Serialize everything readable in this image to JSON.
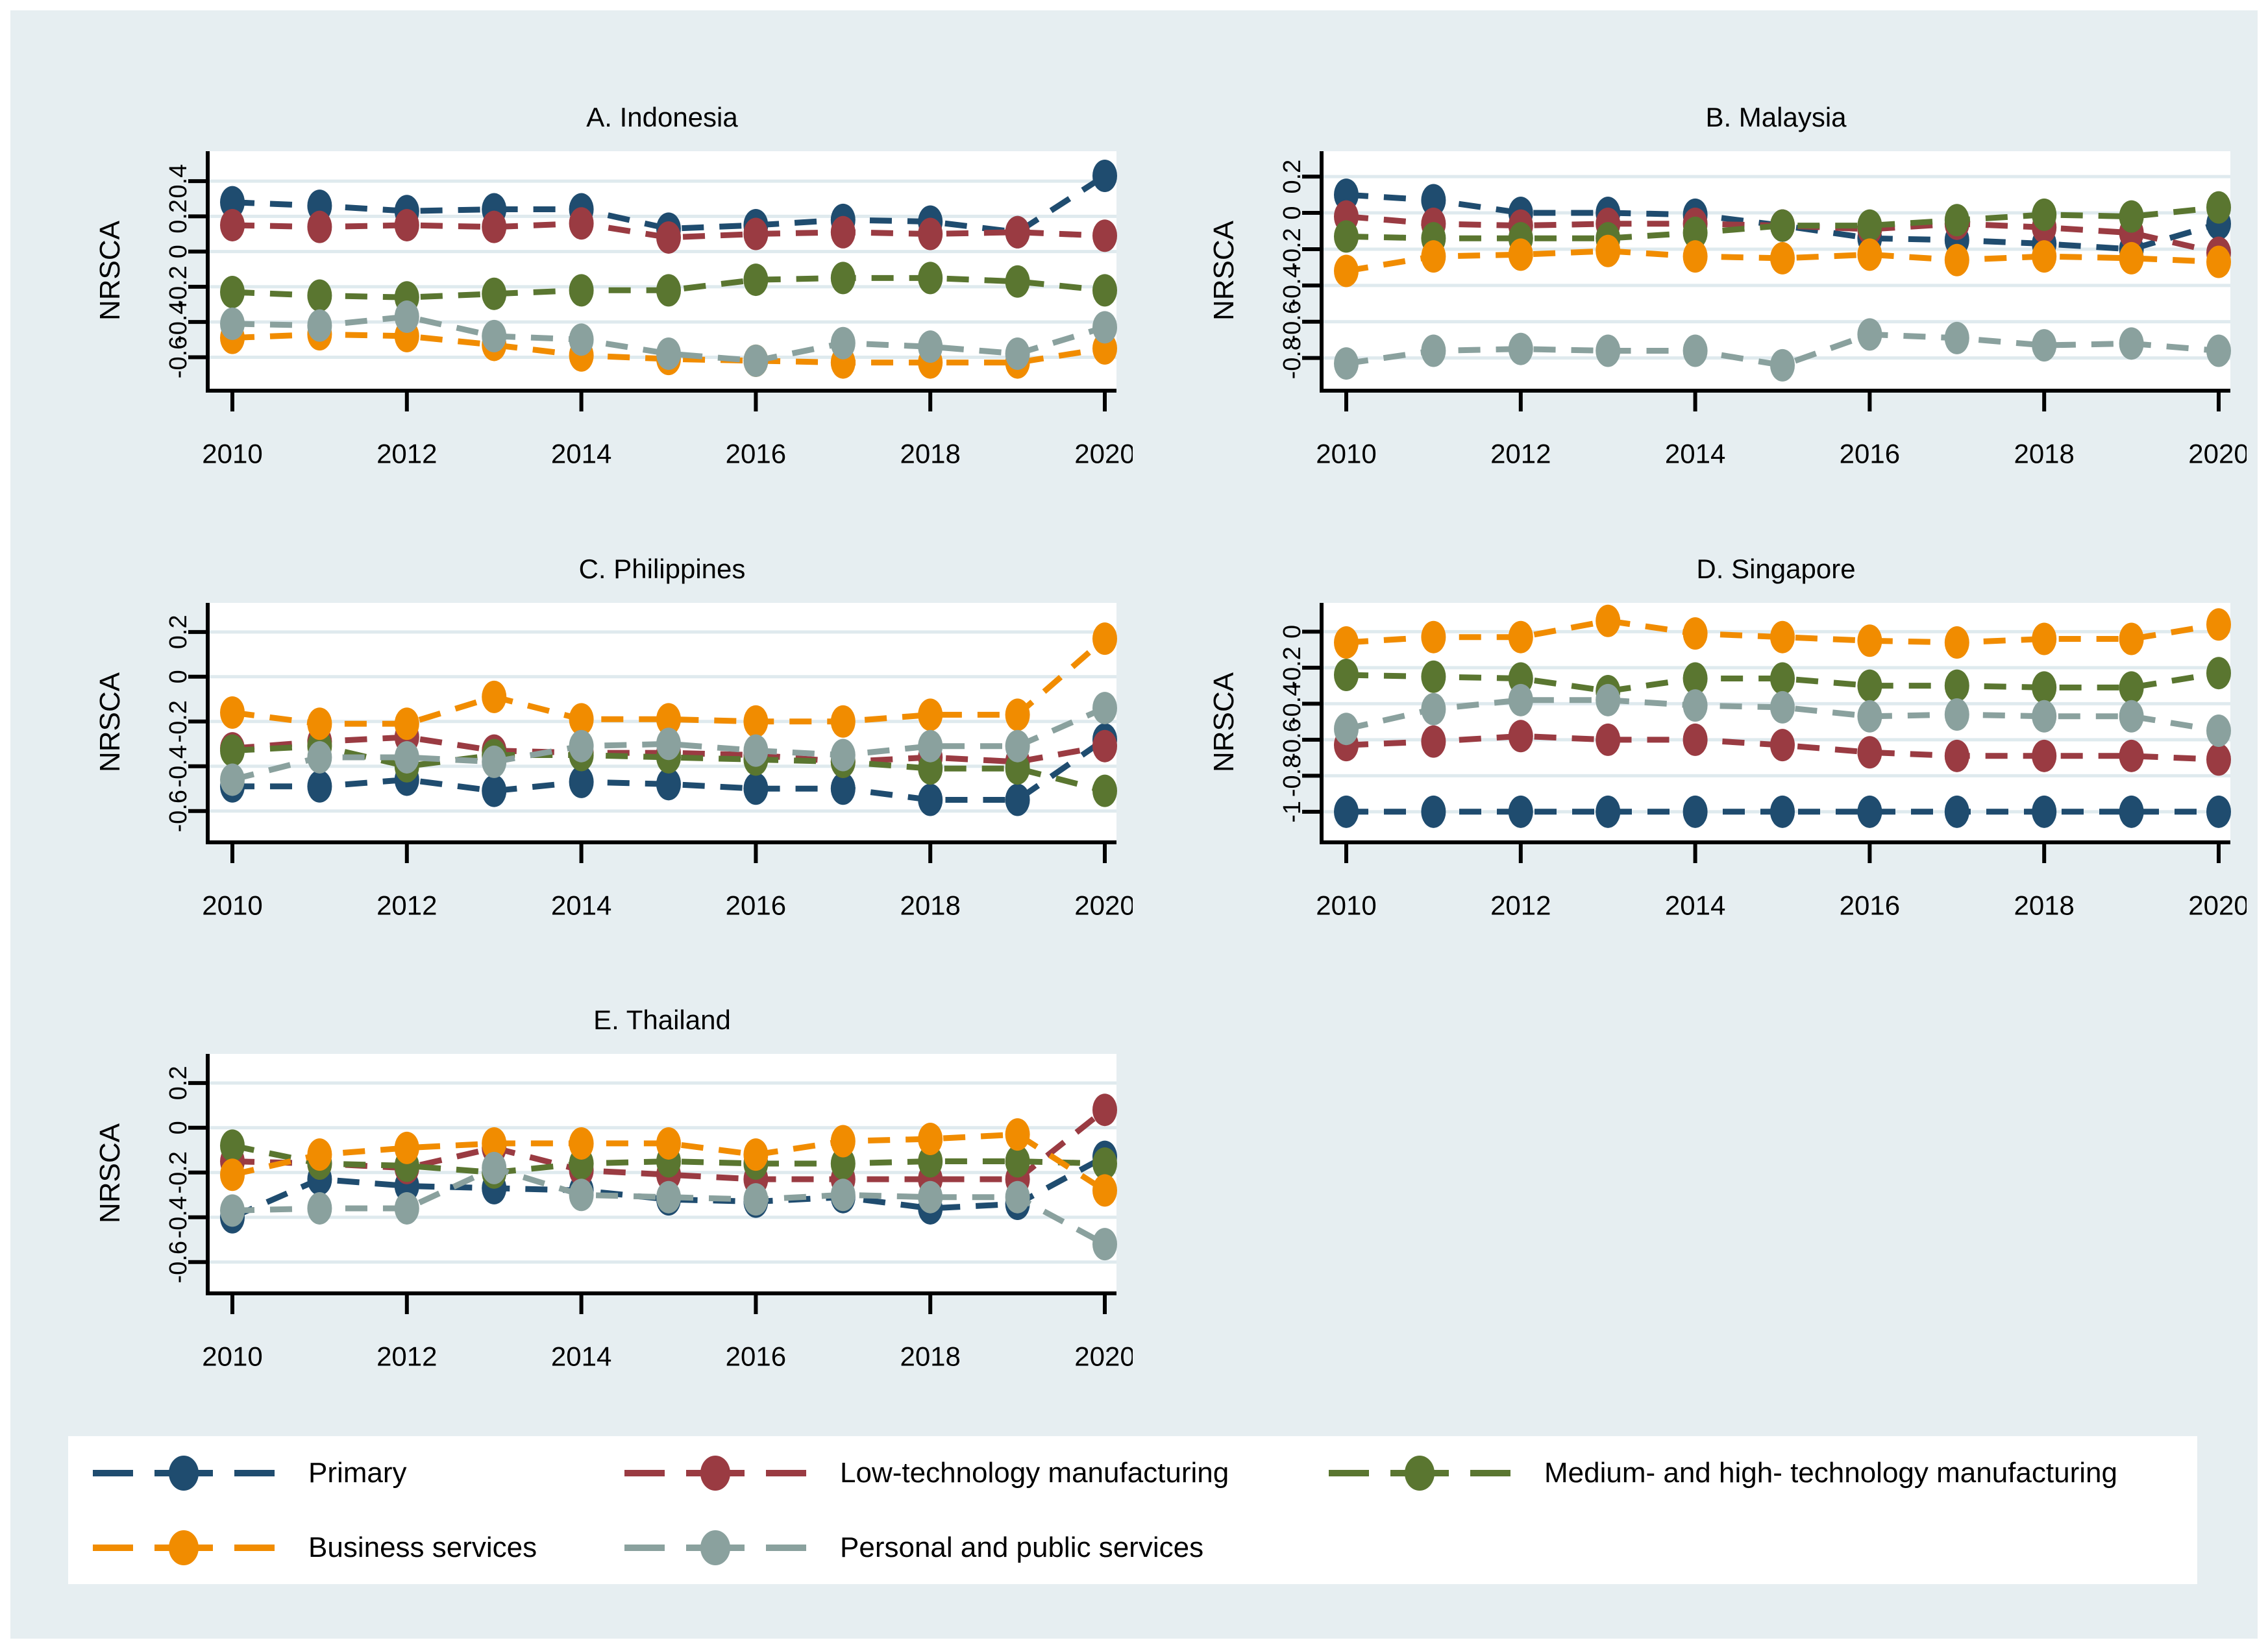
{
  "figure": {
    "background_color": "#e6eef1",
    "plot_background_color": "#ffffff",
    "grid_color": "#dfeaee",
    "axis_color": "#000000"
  },
  "series_meta": [
    {
      "key": "primary",
      "label": "Primary",
      "color": "#1f4c6f"
    },
    {
      "key": "low_tech",
      "label": "Low-technology manufacturing",
      "color": "#9a3b42"
    },
    {
      "key": "med_high_tech",
      "label": "Medium- and high- technology manufacturing",
      "color": "#5a7630"
    },
    {
      "key": "business",
      "label": "Business services",
      "color": "#f18c00"
    },
    {
      "key": "personal_public",
      "label": "Personal and public services",
      "color": "#8aa19e"
    }
  ],
  "chart_data": [
    {
      "type": "line",
      "title": "A. Indonesia",
      "ylabel": "NRSCA",
      "x": [
        2010,
        2011,
        2012,
        2013,
        2014,
        2015,
        2016,
        2017,
        2018,
        2019,
        2020
      ],
      "xticks": [
        2010,
        2012,
        2014,
        2016,
        2018,
        2020
      ],
      "yticks": [
        0.4,
        0.2,
        0,
        -0.2,
        -0.4,
        -0.6
      ],
      "ylim": [
        -0.79,
        0.57
      ],
      "grid": true,
      "legend_position": "bottom-shared",
      "series": [
        {
          "name": "Primary",
          "color": "#1f4c6f",
          "values": [
            0.28,
            0.26,
            0.23,
            0.24,
            0.24,
            0.13,
            0.15,
            0.18,
            0.17,
            0.11,
            0.43
          ]
        },
        {
          "name": "Low-technology manufacturing",
          "color": "#9a3b42",
          "values": [
            0.15,
            0.14,
            0.15,
            0.14,
            0.16,
            0.08,
            0.1,
            0.11,
            0.1,
            0.11,
            0.09
          ]
        },
        {
          "name": "Medium- and high- technology manufacturing",
          "color": "#5a7630",
          "values": [
            -0.23,
            -0.25,
            -0.26,
            -0.24,
            -0.22,
            -0.22,
            -0.16,
            -0.15,
            -0.15,
            -0.17,
            -0.22
          ]
        },
        {
          "name": "Business services",
          "color": "#f18c00",
          "values": [
            -0.49,
            -0.47,
            -0.48,
            -0.53,
            -0.59,
            -0.61,
            -0.62,
            -0.63,
            -0.63,
            -0.63,
            -0.55
          ]
        },
        {
          "name": "Personal and public services",
          "color": "#8aa19e",
          "values": [
            -0.41,
            -0.42,
            -0.37,
            -0.48,
            -0.5,
            -0.58,
            -0.62,
            -0.52,
            -0.54,
            -0.58,
            -0.43
          ]
        }
      ]
    },
    {
      "type": "line",
      "title": "B. Malaysia",
      "ylabel": "NRSCA",
      "x": [
        2010,
        2011,
        2012,
        2013,
        2014,
        2015,
        2016,
        2017,
        2018,
        2019,
        2020
      ],
      "xticks": [
        2010,
        2012,
        2014,
        2016,
        2018,
        2020
      ],
      "yticks": [
        0.2,
        0,
        -0.2,
        -0.4,
        -0.6,
        -0.8
      ],
      "ylim": [
        -0.98,
        0.34
      ],
      "grid": true,
      "legend_position": "bottom-shared",
      "series": [
        {
          "name": "Primary",
          "color": "#1f4c6f",
          "values": [
            0.1,
            0.07,
            0.0,
            0.0,
            -0.01,
            -0.07,
            -0.14,
            -0.15,
            -0.17,
            -0.2,
            -0.06
          ]
        },
        {
          "name": "Low-technology manufacturing",
          "color": "#9a3b42",
          "values": [
            -0.02,
            -0.06,
            -0.07,
            -0.06,
            -0.06,
            -0.07,
            -0.09,
            -0.06,
            -0.08,
            -0.11,
            -0.22
          ]
        },
        {
          "name": "Medium- and high- technology manufacturing",
          "color": "#5a7630",
          "values": [
            -0.13,
            -0.14,
            -0.14,
            -0.14,
            -0.11,
            -0.07,
            -0.07,
            -0.04,
            -0.01,
            -0.02,
            0.03
          ]
        },
        {
          "name": "Business services",
          "color": "#f18c00",
          "values": [
            -0.32,
            -0.24,
            -0.23,
            -0.21,
            -0.24,
            -0.25,
            -0.23,
            -0.26,
            -0.24,
            -0.25,
            -0.27
          ]
        },
        {
          "name": "Personal and public services",
          "color": "#8aa19e",
          "values": [
            -0.83,
            -0.76,
            -0.75,
            -0.76,
            -0.76,
            -0.84,
            -0.67,
            -0.69,
            -0.73,
            -0.72,
            -0.76
          ]
        }
      ]
    },
    {
      "type": "line",
      "title": "C. Philippines",
      "ylabel": "NRSCA",
      "x": [
        2010,
        2011,
        2012,
        2013,
        2014,
        2015,
        2016,
        2017,
        2018,
        2019,
        2020
      ],
      "xticks": [
        2010,
        2012,
        2014,
        2016,
        2018,
        2020
      ],
      "yticks": [
        0.2,
        0,
        -0.2,
        -0.4,
        -0.6
      ],
      "ylim": [
        -0.74,
        0.33
      ],
      "grid": true,
      "legend_position": "bottom-shared",
      "series": [
        {
          "name": "Primary",
          "color": "#1f4c6f",
          "values": [
            -0.49,
            -0.49,
            -0.46,
            -0.51,
            -0.47,
            -0.48,
            -0.5,
            -0.5,
            -0.55,
            -0.55,
            -0.28
          ]
        },
        {
          "name": "Low-technology manufacturing",
          "color": "#9a3b42",
          "values": [
            -0.32,
            -0.29,
            -0.27,
            -0.33,
            -0.34,
            -0.34,
            -0.35,
            -0.38,
            -0.36,
            -0.38,
            -0.31
          ]
        },
        {
          "name": "Medium- and high- technology manufacturing",
          "color": "#5a7630",
          "values": [
            -0.33,
            -0.31,
            -0.4,
            -0.35,
            -0.35,
            -0.36,
            -0.37,
            -0.38,
            -0.41,
            -0.41,
            -0.51
          ]
        },
        {
          "name": "Business services",
          "color": "#f18c00",
          "values": [
            -0.16,
            -0.21,
            -0.21,
            -0.09,
            -0.19,
            -0.19,
            -0.2,
            -0.2,
            -0.17,
            -0.17,
            0.17
          ]
        },
        {
          "name": "Personal and public services",
          "color": "#8aa19e",
          "values": [
            -0.46,
            -0.36,
            -0.36,
            -0.38,
            -0.31,
            -0.3,
            -0.33,
            -0.35,
            -0.31,
            -0.31,
            -0.14
          ]
        }
      ]
    },
    {
      "type": "line",
      "title": "D. Singapore",
      "ylabel": "NRSCA",
      "x": [
        2010,
        2011,
        2012,
        2013,
        2014,
        2015,
        2016,
        2017,
        2018,
        2019,
        2020
      ],
      "xticks": [
        2010,
        2012,
        2014,
        2016,
        2018,
        2020
      ],
      "yticks": [
        0,
        -0.2,
        -0.4,
        -0.6,
        -0.8,
        -1
      ],
      "ylim": [
        -1.17,
        0.16
      ],
      "grid": true,
      "legend_position": "bottom-shared",
      "series": [
        {
          "name": "Primary",
          "color": "#1f4c6f",
          "values": [
            -1.0,
            -1.0,
            -1.0,
            -1.0,
            -1.0,
            -1.0,
            -1.0,
            -1.0,
            -1.0,
            -1.0,
            -1.0
          ]
        },
        {
          "name": "Low-technology manufacturing",
          "color": "#9a3b42",
          "values": [
            -0.63,
            -0.61,
            -0.58,
            -0.6,
            -0.6,
            -0.63,
            -0.67,
            -0.69,
            -0.69,
            -0.69,
            -0.71
          ]
        },
        {
          "name": "Medium- and high- technology manufacturing",
          "color": "#5a7630",
          "values": [
            -0.24,
            -0.25,
            -0.26,
            -0.33,
            -0.26,
            -0.26,
            -0.3,
            -0.3,
            -0.31,
            -0.31,
            -0.23
          ]
        },
        {
          "name": "Business services",
          "color": "#f18c00",
          "values": [
            -0.06,
            -0.03,
            -0.03,
            0.06,
            -0.01,
            -0.03,
            -0.05,
            -0.06,
            -0.04,
            -0.04,
            0.04
          ]
        },
        {
          "name": "Personal and public services",
          "color": "#8aa19e",
          "values": [
            -0.54,
            -0.43,
            -0.38,
            -0.38,
            -0.41,
            -0.42,
            -0.47,
            -0.46,
            -0.47,
            -0.47,
            -0.55
          ]
        }
      ]
    },
    {
      "type": "line",
      "title": "E. Thailand",
      "ylabel": "NRSCA",
      "x": [
        2010,
        2011,
        2012,
        2013,
        2014,
        2015,
        2016,
        2017,
        2018,
        2019,
        2020
      ],
      "xticks": [
        2010,
        2012,
        2014,
        2016,
        2018,
        2020
      ],
      "yticks": [
        0.2,
        0,
        -0.2,
        -0.4,
        -0.6
      ],
      "ylim": [
        -0.74,
        0.33
      ],
      "grid": true,
      "legend_position": "bottom-shared",
      "series": [
        {
          "name": "Primary",
          "color": "#1f4c6f",
          "values": [
            -0.4,
            -0.23,
            -0.26,
            -0.27,
            -0.28,
            -0.32,
            -0.33,
            -0.31,
            -0.36,
            -0.34,
            -0.13
          ]
        },
        {
          "name": "Low-technology manufacturing",
          "color": "#9a3b42",
          "values": [
            -0.15,
            -0.16,
            -0.18,
            -0.09,
            -0.19,
            -0.21,
            -0.23,
            -0.23,
            -0.23,
            -0.23,
            0.08
          ]
        },
        {
          "name": "Medium- and high- technology manufacturing",
          "color": "#5a7630",
          "values": [
            -0.08,
            -0.16,
            -0.17,
            -0.2,
            -0.16,
            -0.15,
            -0.16,
            -0.16,
            -0.15,
            -0.15,
            -0.16
          ]
        },
        {
          "name": "Business services",
          "color": "#f18c00",
          "values": [
            -0.21,
            -0.12,
            -0.09,
            -0.07,
            -0.07,
            -0.07,
            -0.12,
            -0.06,
            -0.05,
            -0.03,
            -0.28
          ]
        },
        {
          "name": "Personal and public services",
          "color": "#8aa19e",
          "values": [
            -0.37,
            -0.36,
            -0.36,
            -0.18,
            -0.3,
            -0.31,
            -0.32,
            -0.3,
            -0.31,
            -0.31,
            -0.52
          ]
        }
      ]
    }
  ],
  "legend": {
    "rows": [
      [
        "Primary",
        "Low-technology manufacturing",
        "Medium- and high- technology manufacturing"
      ],
      [
        "Business services",
        "Personal and public services"
      ]
    ]
  }
}
